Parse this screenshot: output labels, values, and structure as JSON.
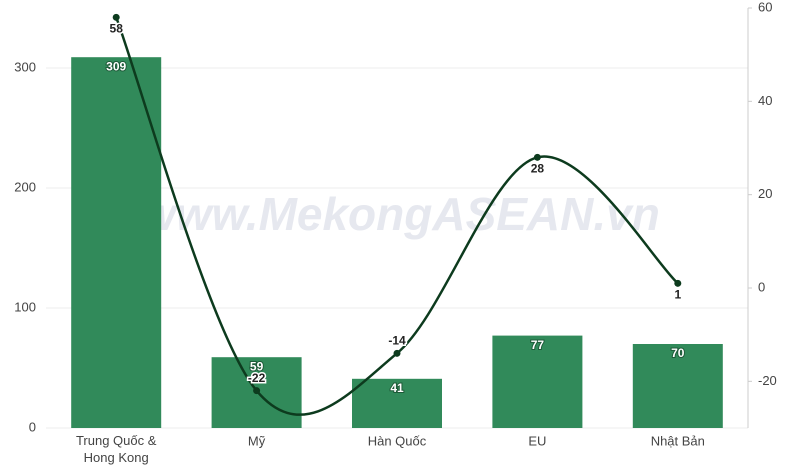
{
  "chart_data": {
    "type": "bar-line",
    "categories": [
      "Trung Quốc & Hong Kong",
      "Mỹ",
      "Hàn Quốc",
      "EU",
      "Nhật Bản"
    ],
    "series": [
      {
        "type": "bar",
        "color": "#318a5a",
        "values": [
          309,
          59,
          41,
          77,
          70
        ]
      },
      {
        "type": "line",
        "axis": "y2",
        "color": "#0d3b1e",
        "values": [
          58,
          -22,
          -14,
          28,
          1
        ]
      }
    ],
    "ylim": [
      0,
      350
    ],
    "yticks": [
      0,
      100,
      200,
      300
    ],
    "y2lim": [
      -30,
      60
    ],
    "y2ticks": [
      -20,
      0,
      20,
      40,
      60
    ],
    "grid": true,
    "watermark": "www.MekongASEAN.vn"
  }
}
